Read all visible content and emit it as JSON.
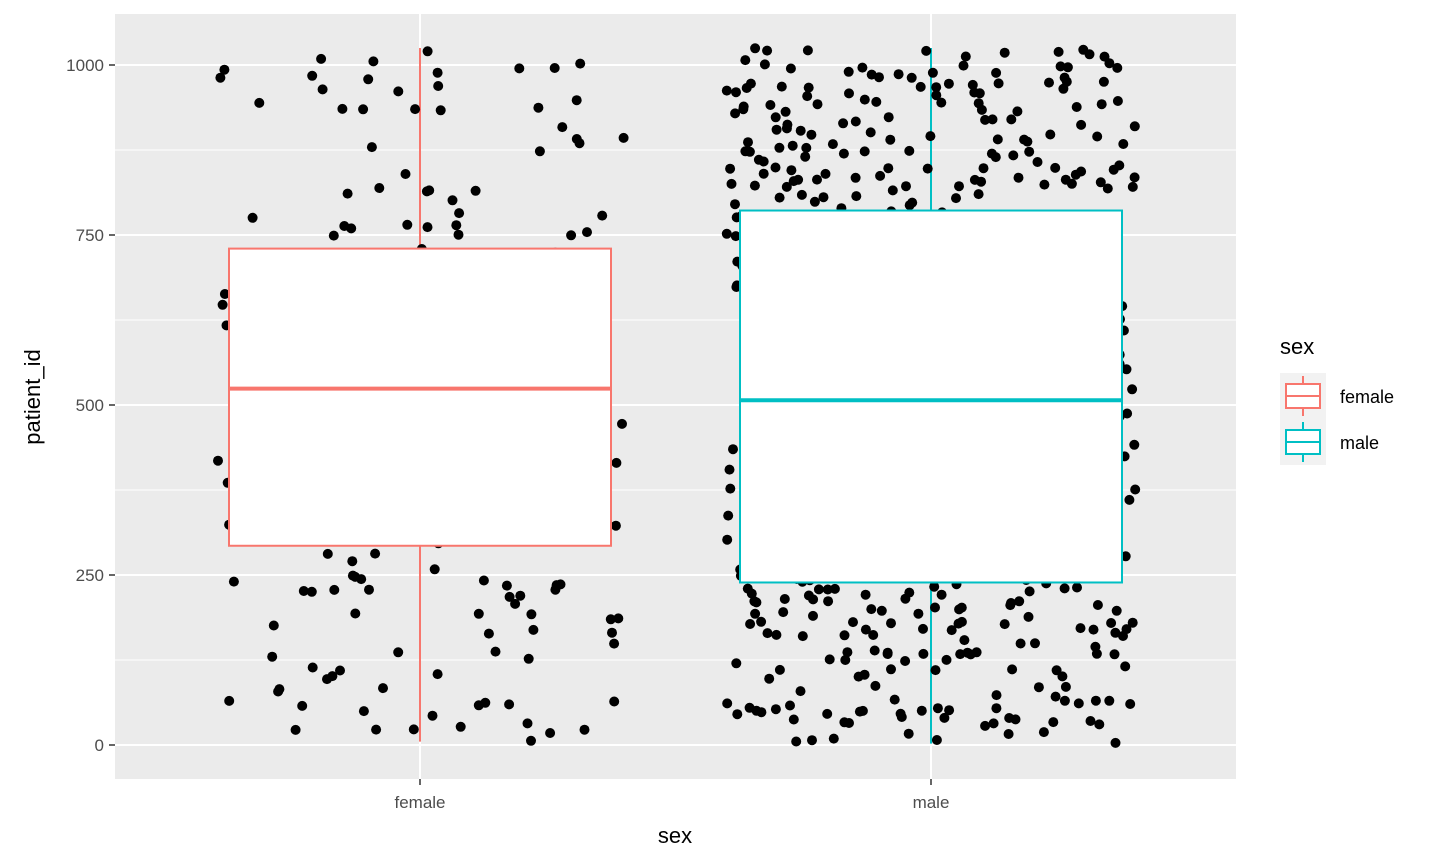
{
  "chart_data": {
    "type": "boxplot",
    "title": "",
    "xlabel": "sex",
    "ylabel": "patient_id",
    "categories": [
      "female",
      "male"
    ],
    "y_ticks": [
      0,
      250,
      500,
      750,
      1000
    ],
    "y_tick_labels": [
      "0",
      "250",
      "500",
      "750",
      "1000"
    ],
    "ylim": [
      -50,
      1075
    ],
    "grid": true,
    "legend": {
      "title": "sex",
      "position": "right",
      "entries": [
        {
          "label": "female",
          "color": "#F8766D"
        },
        {
          "label": "male",
          "color": "#00BFC4"
        }
      ]
    },
    "boxes": [
      {
        "category": "female",
        "min": 5,
        "q1": 293,
        "median": 524,
        "q3": 730,
        "max": 1025,
        "color": "#F8766D",
        "jitter_n": 185
      },
      {
        "category": "male",
        "min": 2,
        "q1": 239,
        "median": 507,
        "q3": 786,
        "max": 1025,
        "color": "#00BFC4",
        "jitter_n": 560
      }
    ],
    "point_color": "#000000",
    "panel_background": "#EBEBEB",
    "grid_color": "#FFFFFF"
  }
}
